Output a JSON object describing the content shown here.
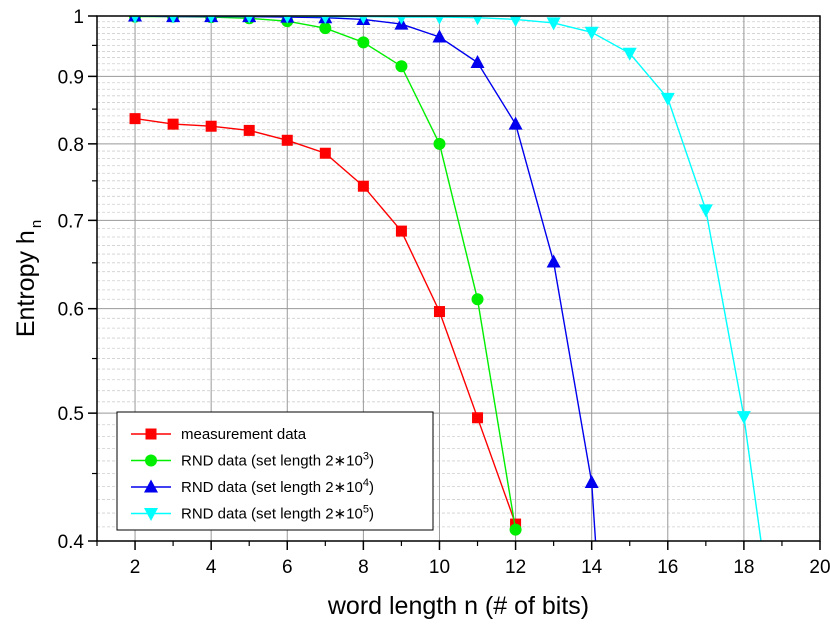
{
  "chart_data": {
    "type": "line",
    "xlabel": "word length n (# of bits)",
    "ylabel_main": "Entropy h",
    "ylabel_sub": "n",
    "xlim": [
      1,
      20
    ],
    "ylim": [
      0.4,
      1.0
    ],
    "yscale": "log",
    "xticks": [
      2,
      4,
      6,
      8,
      10,
      12,
      14,
      16,
      18,
      20
    ],
    "xticks_minor": [
      1,
      3,
      5,
      7,
      9,
      11,
      13,
      15,
      17,
      19
    ],
    "yticks": [
      0.4,
      0.5,
      0.6,
      0.7,
      0.8,
      0.9,
      1.0
    ],
    "ytick_labels": [
      "0.4",
      "0.5",
      "0.6",
      "0.7",
      "0.8",
      "0.9",
      "1"
    ],
    "grid": true,
    "legend_position": "bottom-left",
    "series": [
      {
        "name": "measurement data",
        "color": "#ff0000",
        "marker": "square",
        "x": [
          2,
          3,
          4,
          5,
          6,
          7,
          8,
          9,
          10,
          11,
          12
        ],
        "y": [
          0.836,
          0.828,
          0.825,
          0.819,
          0.805,
          0.787,
          0.743,
          0.687,
          0.597,
          0.496,
          0.412
        ]
      },
      {
        "name": "RND data (set length 2∗10",
        "name_sup": "3",
        "name_end": ")",
        "color": "#00ee00",
        "marker": "circle",
        "x": [
          2,
          3,
          4,
          5,
          6,
          7,
          8,
          9,
          10,
          11,
          12
        ],
        "y": [
          0.999,
          0.999,
          0.998,
          0.996,
          0.991,
          0.979,
          0.955,
          0.916,
          0.8,
          0.61,
          0.408
        ]
      },
      {
        "name": "RND data (set length 2∗10",
        "name_sup": "4",
        "name_end": ")",
        "color": "#0000ee",
        "marker": "triangle-up",
        "x": [
          2,
          3,
          4,
          5,
          6,
          7,
          8,
          9,
          10,
          11,
          12,
          13,
          14,
          14.1
        ],
        "y": [
          1.0,
          0.999,
          0.999,
          0.999,
          0.998,
          0.997,
          0.994,
          0.986,
          0.964,
          0.922,
          0.828,
          0.651,
          0.443,
          0.4
        ]
      },
      {
        "name": "RND data (set length 2∗10",
        "name_sup": "5",
        "name_end": ")",
        "color": "#00ffff",
        "marker": "triangle-down",
        "x": [
          2,
          3,
          4,
          5,
          6,
          7,
          8,
          9,
          10,
          11,
          12,
          13,
          14,
          15,
          16,
          17,
          18,
          18.45
        ],
        "y": [
          1.0,
          1.0,
          1.0,
          1.0,
          1.0,
          0.999,
          0.999,
          0.998,
          0.998,
          0.997,
          0.994,
          0.988,
          0.972,
          0.937,
          0.866,
          0.713,
          0.497,
          0.4
        ]
      }
    ]
  }
}
